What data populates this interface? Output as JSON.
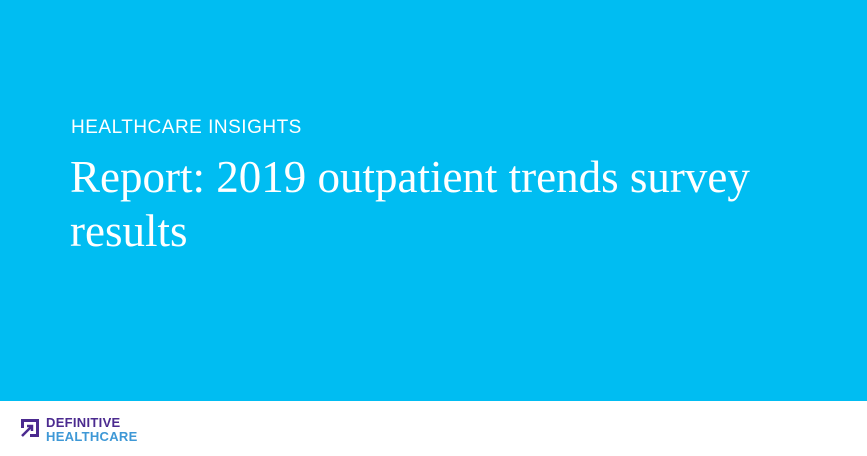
{
  "hero": {
    "eyebrow": "HEALTHCARE INSIGHTS",
    "title": "Report: 2019 outpatient trends survey results"
  },
  "footer": {
    "logo_line1": "DEFINITIVE",
    "logo_line2": "HEALTHCARE"
  }
}
